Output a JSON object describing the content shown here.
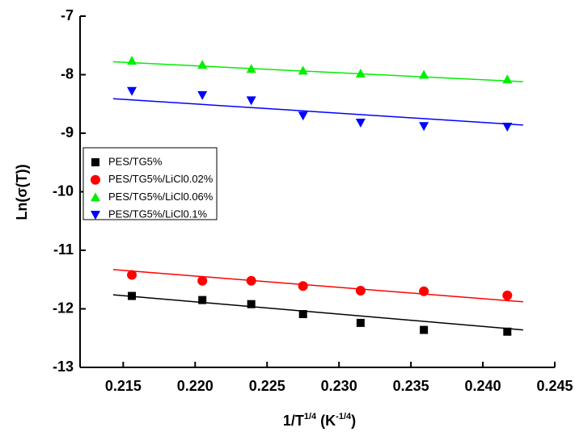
{
  "chart_data": {
    "type": "scatter",
    "xlabel": [
      "1/T",
      "1/4",
      " (K",
      "-1/4",
      ")"
    ],
    "ylabel": "Ln(σ(T))",
    "xlim": [
      0.212,
      0.245
    ],
    "ylim": [
      -13,
      -7
    ],
    "xticks": [
      0.215,
      {
        "value": 0.22,
        "label": "0.220"
      },
      0.225,
      {
        "value": 0.23,
        "label": "0.230"
      },
      0.235,
      {
        "value": 0.24,
        "label": "0.240"
      },
      0.245
    ],
    "yticks": [
      -7,
      -8,
      -9,
      -10,
      -11,
      -12,
      -13
    ],
    "x": [
      0.2156,
      0.2205,
      0.2239,
      0.2275,
      0.2315,
      0.2359,
      0.2417
    ],
    "legend": "upper left",
    "series": [
      {
        "name": "PES/TG5%",
        "color": "#000000",
        "marker": "square",
        "values": [
          -11.78,
          -11.85,
          -11.92,
          -12.09,
          -12.24,
          -12.36,
          -12.39
        ],
        "fit_x": [
          0.2143,
          0.2428
        ],
        "fit_y": [
          -11.76,
          -12.36
        ]
      },
      {
        "name": "PES/TG5%/LiCl0.02%",
        "color": "#ff0000",
        "marker": "circle",
        "values": [
          -11.42,
          -11.52,
          -11.52,
          -11.61,
          -11.69,
          -11.7,
          -11.77
        ],
        "fit_x": [
          0.2143,
          0.2428
        ],
        "fit_y": [
          -11.33,
          -11.88
        ]
      },
      {
        "name": "PES/TG5%/LiCl0.06%",
        "color": "#00ee00",
        "marker": "triangle-up",
        "values": [
          -7.76,
          -7.83,
          -7.9,
          -7.93,
          -7.98,
          -8.0,
          -8.08
        ],
        "fit_x": [
          0.2143,
          0.2428
        ],
        "fit_y": [
          -7.78,
          -8.12
        ]
      },
      {
        "name": "PES/TG5%/LiCl0.1%",
        "color": "#0000ff",
        "marker": "triangle-down",
        "values": [
          -8.28,
          -8.35,
          -8.44,
          -8.7,
          -8.82,
          -8.88,
          -8.89
        ],
        "fit_x": [
          0.2143,
          0.2428
        ],
        "fit_y": [
          -8.41,
          -8.86
        ]
      }
    ]
  }
}
